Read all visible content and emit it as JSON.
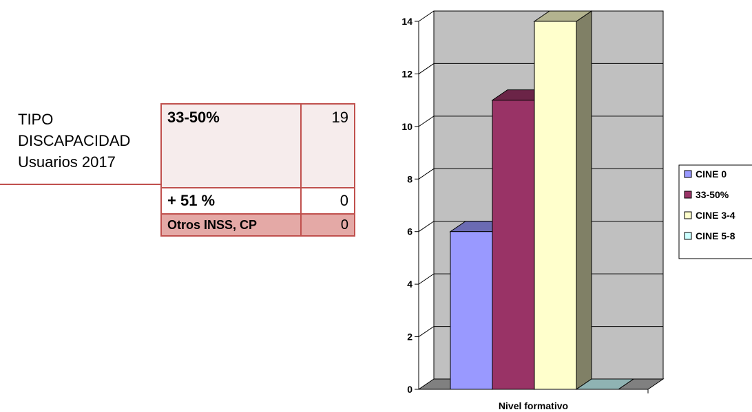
{
  "side_label": {
    "line1": "TIPO",
    "line2": "DISCAPACIDAD",
    "line3": "Usuarios 2017"
  },
  "table": {
    "rows": [
      {
        "key": "33-50%",
        "value": "19"
      },
      {
        "key": "+ 51 %",
        "value": "0"
      },
      {
        "key": "Otros INSS, CP",
        "value": "0"
      }
    ]
  },
  "chart_data": {
    "type": "bar",
    "style": "3d",
    "categories": [
      "Nivel formativo"
    ],
    "xlabel": "Nivel formativo",
    "ylabel": "",
    "ylim": [
      0,
      14
    ],
    "yticks": [
      0,
      2,
      4,
      6,
      8,
      10,
      12,
      14
    ],
    "grid": true,
    "legend_position": "right",
    "series": [
      {
        "name": "CINE 0",
        "values": [
          6
        ],
        "color": "#9999ff"
      },
      {
        "name": "33-50%",
        "values": [
          11
        ],
        "color": "#993366"
      },
      {
        "name": "CINE 3-4",
        "values": [
          14
        ],
        "color": "#ffffcc"
      },
      {
        "name": "CINE 5-8",
        "values": [
          0
        ],
        "color": "#ccffff"
      }
    ],
    "colors": {
      "wall": "#c0c0c0",
      "floor": "#808080"
    }
  }
}
